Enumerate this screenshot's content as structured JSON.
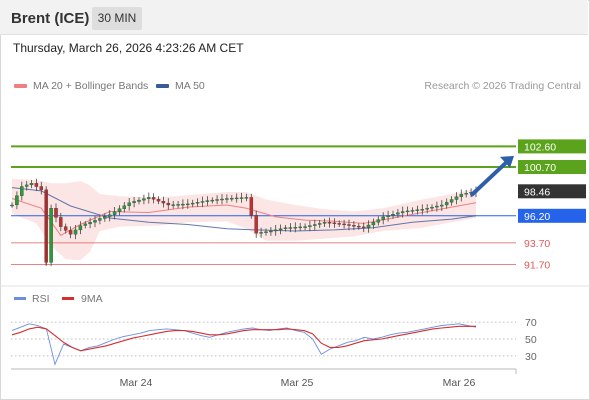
{
  "header": {
    "instrument": "Brent (ICE)",
    "timeframe": "30 MIN"
  },
  "timestamp": "Thursday, March 26, 2026 4:23:26 AM CET",
  "legend": {
    "ma20": "MA 20 + Bollinger Bands",
    "ma50": "MA 50"
  },
  "credit": "Research © 2026 Trading Central",
  "colors": {
    "ma20": "#f08080",
    "ma50": "#3a5a9a",
    "resistance": "#5ba31c",
    "pivot": "#2563eb",
    "support": "#e05a5a",
    "last": "#333333",
    "arrow": "#2f5fa8",
    "rsi": "#6b8fe0",
    "rsi_ma": "#d33030"
  },
  "rsi_legend": {
    "rsi": "RSI",
    "ma": "9MA"
  },
  "chart_data": [
    {
      "type": "candlestick",
      "title": "",
      "x_labels": [
        "Mar 24",
        "Mar 25",
        "Mar 26"
      ],
      "ylim": [
        90,
        105.5
      ],
      "levels": [
        {
          "value": 102.6,
          "label": "102.60",
          "kind": "resistance"
        },
        {
          "value": 100.7,
          "label": "100.70",
          "kind": "resistance"
        },
        {
          "value": 98.46,
          "label": "98.46",
          "kind": "last"
        },
        {
          "value": 96.2,
          "label": "96.20",
          "kind": "pivot"
        },
        {
          "value": 93.7,
          "label": "93.70",
          "kind": "support"
        },
        {
          "value": 91.7,
          "label": "91.70",
          "kind": "support"
        }
      ],
      "price_path": [
        [
          0,
          97.2
        ],
        [
          2,
          98.9
        ],
        [
          4,
          99.2
        ],
        [
          6,
          98.6
        ],
        [
          7,
          91.9
        ],
        [
          8,
          96.9
        ],
        [
          10,
          95.2
        ],
        [
          12,
          94.5
        ],
        [
          14,
          95.3
        ],
        [
          16,
          95.6
        ],
        [
          20,
          96.3
        ],
        [
          24,
          97.4
        ],
        [
          28,
          97.9
        ],
        [
          32,
          97.2
        ],
        [
          36,
          97.3
        ],
        [
          40,
          97.6
        ],
        [
          44,
          97.8
        ],
        [
          48,
          97.9
        ],
        [
          50,
          94.6
        ],
        [
          53,
          94.8
        ],
        [
          56,
          95.1
        ],
        [
          60,
          95.2
        ],
        [
          64,
          95.6
        ],
        [
          68,
          95.4
        ],
        [
          72,
          95.1
        ],
        [
          76,
          96.1
        ],
        [
          80,
          96.6
        ],
        [
          84,
          96.8
        ],
        [
          88,
          97.2
        ],
        [
          92,
          98.2
        ],
        [
          95,
          98.46
        ]
      ],
      "ma20_path": [
        [
          0,
          97.8
        ],
        [
          6,
          96.9
        ],
        [
          10,
          94.4
        ],
        [
          14,
          95.4
        ],
        [
          20,
          96.6
        ],
        [
          28,
          96.5
        ],
        [
          36,
          97.0
        ],
        [
          44,
          97.2
        ],
        [
          48,
          96.9
        ],
        [
          54,
          96.1
        ],
        [
          60,
          95.8
        ],
        [
          66,
          95.7
        ],
        [
          72,
          95.5
        ],
        [
          78,
          96.0
        ],
        [
          84,
          96.5
        ],
        [
          90,
          97.0
        ],
        [
          95,
          97.4
        ]
      ],
      "ma50_path": [
        [
          0,
          98.8
        ],
        [
          6,
          98.5
        ],
        [
          12,
          97.1
        ],
        [
          20,
          96.0
        ],
        [
          28,
          95.6
        ],
        [
          36,
          95.4
        ],
        [
          44,
          95.0
        ],
        [
          50,
          94.9
        ],
        [
          58,
          94.8
        ],
        [
          66,
          94.9
        ],
        [
          74,
          95.1
        ],
        [
          82,
          95.6
        ],
        [
          90,
          95.9
        ],
        [
          95,
          96.2
        ]
      ],
      "bb_upper": [
        [
          0,
          99.6
        ],
        [
          5,
          99.5
        ],
        [
          8,
          99.2
        ],
        [
          11,
          99.2
        ],
        [
          14,
          99.4
        ],
        [
          16,
          99.0
        ],
        [
          18,
          98.2
        ],
        [
          22,
          98.0
        ],
        [
          30,
          97.9
        ],
        [
          36,
          98.1
        ],
        [
          44,
          98.4
        ],
        [
          48,
          98.4
        ],
        [
          52,
          97.7
        ],
        [
          58,
          97.2
        ],
        [
          64,
          96.8
        ],
        [
          70,
          96.6
        ],
        [
          76,
          96.9
        ],
        [
          84,
          97.7
        ],
        [
          90,
          98.2
        ],
        [
          95,
          98.7
        ]
      ],
      "bb_lower": [
        [
          0,
          96.4
        ],
        [
          5,
          95.5
        ],
        [
          8,
          93.4
        ],
        [
          11,
          92.2
        ],
        [
          14,
          92.1
        ],
        [
          16,
          92.9
        ],
        [
          18,
          94.8
        ],
        [
          22,
          95.2
        ],
        [
          30,
          95.3
        ],
        [
          36,
          95.6
        ],
        [
          44,
          95.7
        ],
        [
          48,
          95.0
        ],
        [
          52,
          93.9
        ],
        [
          58,
          93.9
        ],
        [
          64,
          94.1
        ],
        [
          70,
          94.3
        ],
        [
          76,
          94.8
        ],
        [
          84,
          95.1
        ],
        [
          90,
          95.6
        ],
        [
          95,
          96.0
        ]
      ],
      "forecast_arrow": {
        "from": [
          93,
          97.9
        ],
        "to": [
          101,
          100.8
        ]
      }
    },
    {
      "type": "line",
      "title": "",
      "ylim": [
        18,
        82
      ],
      "y_ticks": [
        70,
        50,
        30
      ],
      "series": [
        {
          "name": "RSI",
          "values": [
            60,
            64,
            68,
            66,
            62,
            20,
            44,
            40,
            36,
            40,
            42,
            46,
            50,
            53,
            55,
            57,
            60,
            61,
            62,
            61,
            60,
            57,
            54,
            52,
            55,
            58,
            60,
            62,
            63,
            61,
            60,
            62,
            63,
            60,
            58,
            50,
            32,
            38,
            42,
            46,
            48,
            52,
            50,
            52,
            55,
            57,
            58,
            60,
            62,
            64,
            66,
            67,
            68,
            66,
            64
          ]
        },
        {
          "name": "9MA",
          "values": [
            55,
            58,
            62,
            64,
            62,
            54,
            46,
            40,
            36,
            38,
            40,
            42,
            45,
            48,
            51,
            53,
            55,
            57,
            59,
            60,
            60,
            59,
            57,
            55,
            55,
            56,
            58,
            60,
            61,
            61,
            61,
            61,
            62,
            61,
            60,
            56,
            45,
            40,
            40,
            42,
            45,
            48,
            49,
            50,
            52,
            54,
            56,
            58,
            60,
            62,
            63,
            64,
            65,
            65,
            65
          ]
        }
      ]
    }
  ]
}
